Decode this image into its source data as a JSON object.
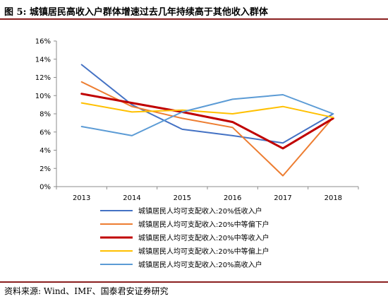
{
  "header": {
    "title": "图 5: 城镇居民高收入户群体增速过去几年持续高于其他收入群体"
  },
  "footer": {
    "source": "资料来源: Wind、IMF、国泰君安证券研究"
  },
  "chart_data": {
    "type": "line",
    "title": "图 5: 城镇居民高收入户群体增速过去几年持续高于其他收入群体",
    "x": [
      "2013",
      "2014",
      "2015",
      "2016",
      "2017",
      "2018"
    ],
    "ylim": [
      0,
      16
    ],
    "yticks": [
      "0%",
      "2%",
      "4%",
      "6%",
      "8%",
      "10%",
      "12%",
      "14%",
      "16%"
    ],
    "grid": false,
    "legend_position": "bottom",
    "series": [
      {
        "name": "城镇居民人均可支配收入:20%低收入户",
        "color": "#4472c4",
        "width": 2,
        "values": [
          13.4,
          9.0,
          6.3,
          5.6,
          4.8,
          8.0
        ]
      },
      {
        "name": "城镇居民人均可支配收入:20%中等偏下户",
        "color": "#ed7d31",
        "width": 2,
        "values": [
          11.5,
          8.8,
          7.5,
          6.5,
          1.2,
          7.6
        ]
      },
      {
        "name": "城镇居民人均可支配收入:20%中等收入户",
        "color": "#c00000",
        "width": 3,
        "values": [
          10.2,
          9.2,
          8.2,
          7.1,
          4.2,
          7.5
        ]
      },
      {
        "name": "城镇居民人均可支配收入:20%中等偏上户",
        "color": "#ffc000",
        "width": 2,
        "values": [
          9.2,
          8.2,
          8.4,
          8.0,
          8.8,
          7.6
        ]
      },
      {
        "name": "城镇居民人均可支配收入:20%高收入户",
        "color": "#5b9bd5",
        "width": 2,
        "values": [
          6.6,
          5.6,
          8.2,
          9.6,
          10.1,
          8.0
        ]
      }
    ]
  }
}
